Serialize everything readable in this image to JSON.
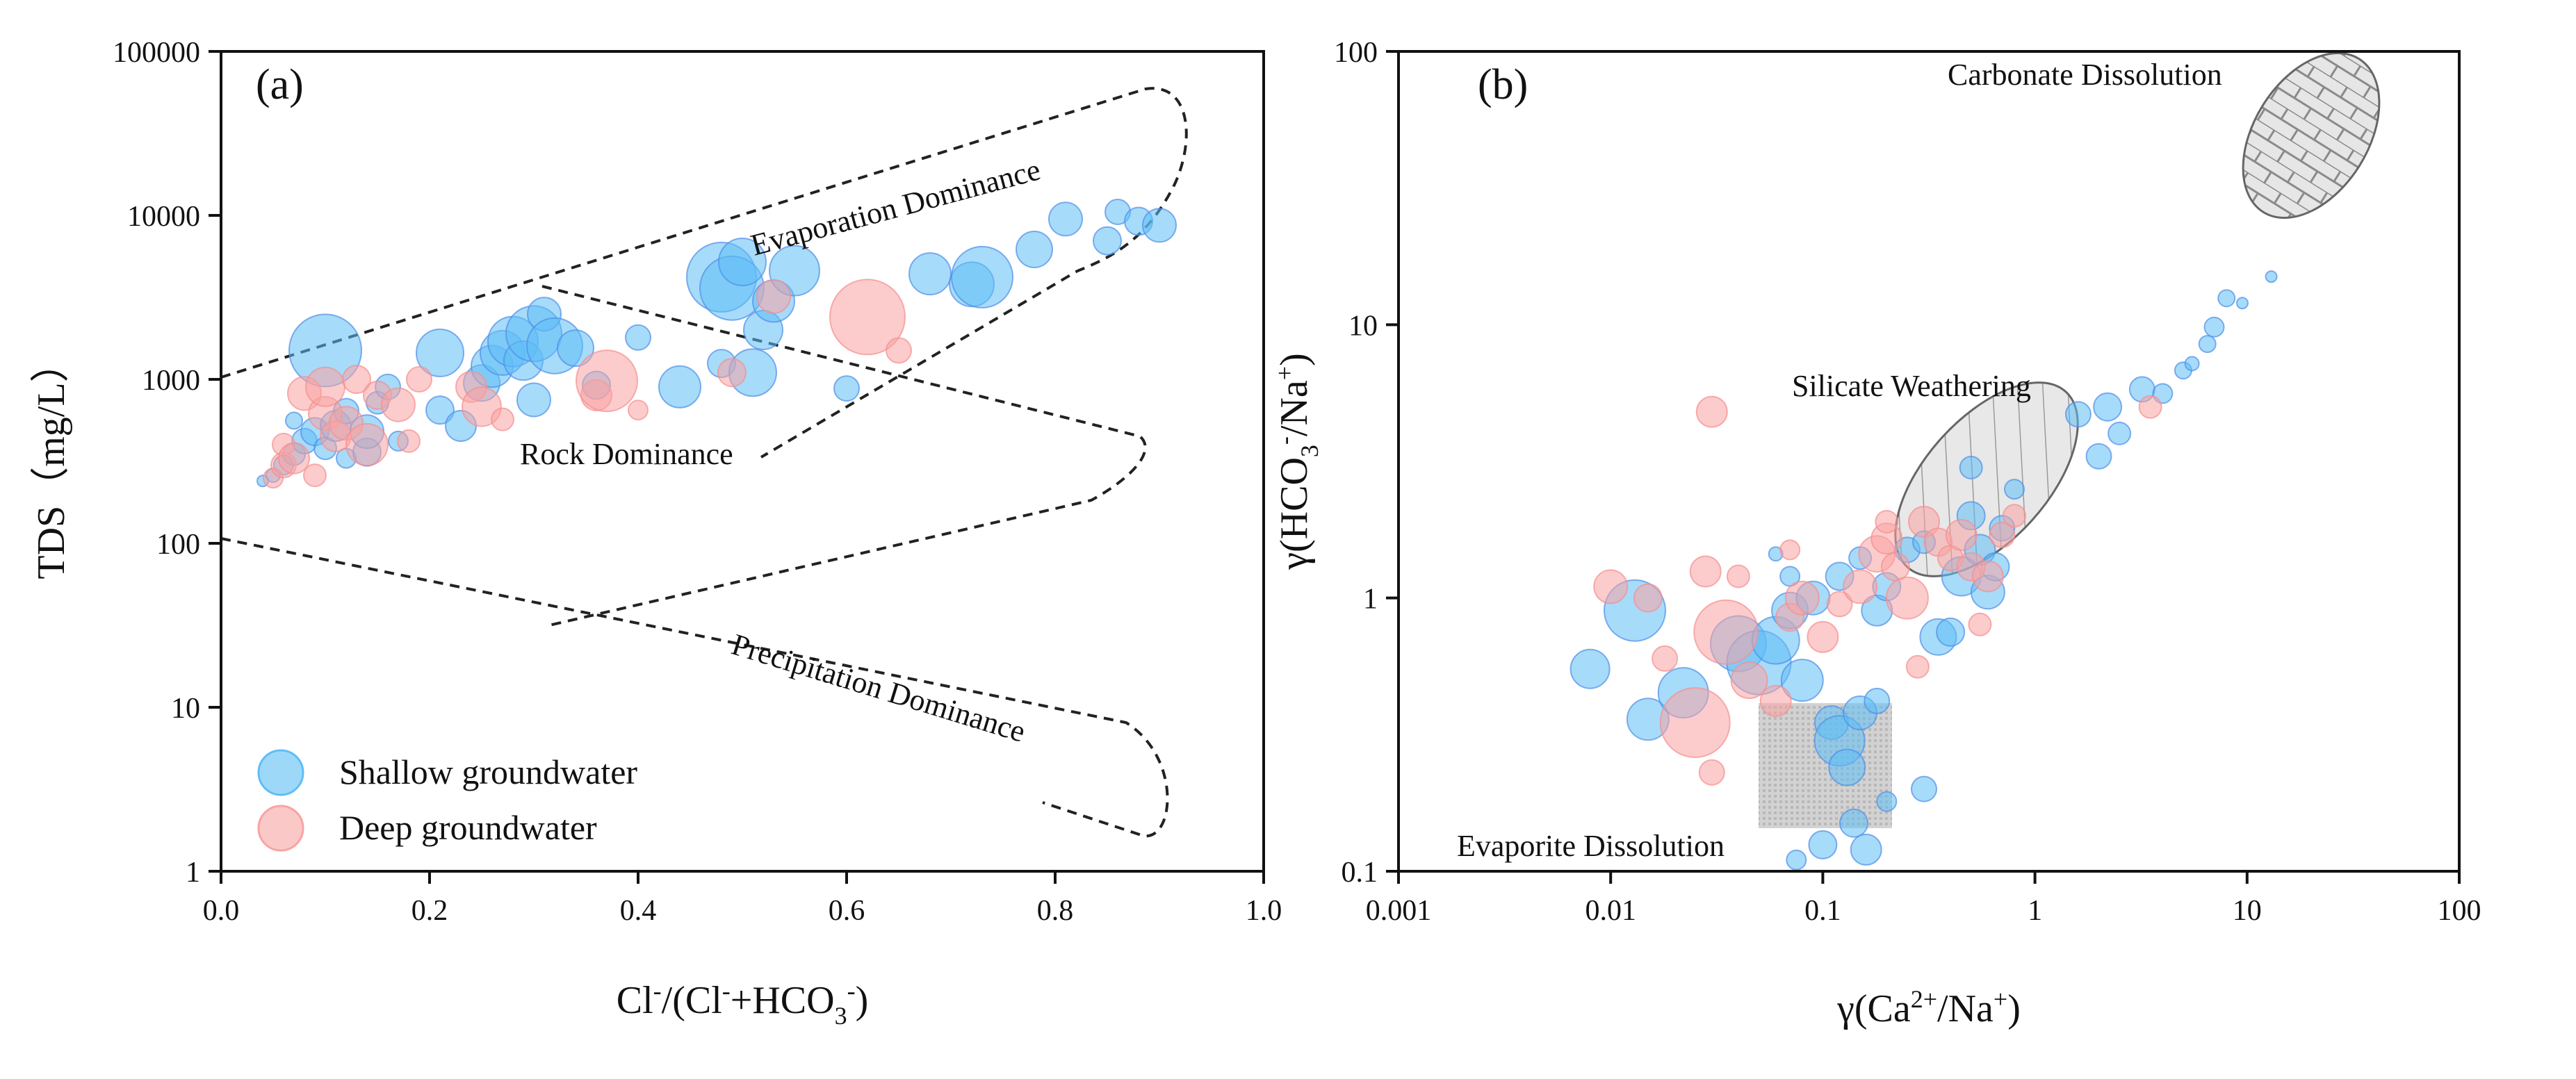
{
  "chart_data": [
    {
      "type": "scatter",
      "panel": "(a)",
      "xlabel": "Cl⁻/(Cl⁻+HCO₃⁻)",
      "ylabel": "TDS（mg/L）",
      "x_scale": "linear",
      "y_scale": "log",
      "xlim": [
        0.0,
        1.0
      ],
      "ylim": [
        1,
        100000
      ],
      "x_ticks": [
        "0.0",
        "0.2",
        "0.4",
        "0.6",
        "0.8",
        "1.0"
      ],
      "y_ticks": [
        "1",
        "10",
        "100",
        "1000",
        "10000",
        "100000"
      ],
      "regions": [
        "Evaporation Dominance",
        "Rock Dominance",
        "Precipitation Dominance"
      ],
      "legend": {
        "position": "bottom-left",
        "entries": [
          {
            "label": "Shallow groundwater",
            "color": "#5EBEF5"
          },
          {
            "label": "Deep groundwater",
            "color": "#F9A3A3"
          }
        ]
      },
      "series": [
        {
          "name": "Shallow groundwater",
          "color": "#5EBEF5",
          "points": [
            {
              "x": 0.04,
              "y": 240,
              "r": 8
            },
            {
              "x": 0.05,
              "y": 260,
              "r": 10
            },
            {
              "x": 0.06,
              "y": 300,
              "r": 14
            },
            {
              "x": 0.07,
              "y": 350,
              "r": 16
            },
            {
              "x": 0.08,
              "y": 420,
              "r": 18
            },
            {
              "x": 0.09,
              "y": 480,
              "r": 20
            },
            {
              "x": 0.07,
              "y": 560,
              "r": 12
            },
            {
              "x": 0.1,
              "y": 380,
              "r": 16
            },
            {
              "x": 0.11,
              "y": 520,
              "r": 22
            },
            {
              "x": 0.12,
              "y": 330,
              "r": 14
            },
            {
              "x": 0.12,
              "y": 640,
              "r": 18
            },
            {
              "x": 0.14,
              "y": 360,
              "r": 20
            },
            {
              "x": 0.14,
              "y": 480,
              "r": 24
            },
            {
              "x": 0.15,
              "y": 720,
              "r": 16
            },
            {
              "x": 0.16,
              "y": 900,
              "r": 18
            },
            {
              "x": 0.17,
              "y": 420,
              "r": 14
            },
            {
              "x": 0.1,
              "y": 1500,
              "r": 52
            },
            {
              "x": 0.21,
              "y": 1450,
              "r": 34
            },
            {
              "x": 0.21,
              "y": 650,
              "r": 20
            },
            {
              "x": 0.23,
              "y": 520,
              "r": 22
            },
            {
              "x": 0.25,
              "y": 950,
              "r": 26
            },
            {
              "x": 0.26,
              "y": 1200,
              "r": 30
            },
            {
              "x": 0.27,
              "y": 1450,
              "r": 32
            },
            {
              "x": 0.28,
              "y": 1700,
              "r": 36
            },
            {
              "x": 0.29,
              "y": 1300,
              "r": 28
            },
            {
              "x": 0.3,
              "y": 1900,
              "r": 40
            },
            {
              "x": 0.31,
              "y": 2500,
              "r": 24
            },
            {
              "x": 0.32,
              "y": 1600,
              "r": 40
            },
            {
              "x": 0.34,
              "y": 1550,
              "r": 26
            },
            {
              "x": 0.3,
              "y": 750,
              "r": 24
            },
            {
              "x": 0.36,
              "y": 920,
              "r": 20
            },
            {
              "x": 0.4,
              "y": 1800,
              "r": 18
            },
            {
              "x": 0.44,
              "y": 900,
              "r": 30
            },
            {
              "x": 0.48,
              "y": 1250,
              "r": 20
            },
            {
              "x": 0.48,
              "y": 4200,
              "r": 50
            },
            {
              "x": 0.49,
              "y": 3600,
              "r": 46
            },
            {
              "x": 0.5,
              "y": 5200,
              "r": 34
            },
            {
              "x": 0.51,
              "y": 1100,
              "r": 34
            },
            {
              "x": 0.52,
              "y": 2000,
              "r": 28
            },
            {
              "x": 0.53,
              "y": 3000,
              "r": 30
            },
            {
              "x": 0.55,
              "y": 4600,
              "r": 36
            },
            {
              "x": 0.6,
              "y": 880,
              "r": 18
            },
            {
              "x": 0.68,
              "y": 4400,
              "r": 30
            },
            {
              "x": 0.72,
              "y": 3800,
              "r": 32
            },
            {
              "x": 0.73,
              "y": 4200,
              "r": 44
            },
            {
              "x": 0.78,
              "y": 6200,
              "r": 26
            },
            {
              "x": 0.81,
              "y": 9500,
              "r": 24
            },
            {
              "x": 0.85,
              "y": 7000,
              "r": 20
            },
            {
              "x": 0.86,
              "y": 10500,
              "r": 18
            },
            {
              "x": 0.88,
              "y": 9200,
              "r": 20
            },
            {
              "x": 0.9,
              "y": 8700,
              "r": 24
            }
          ]
        },
        {
          "name": "Deep groundwater",
          "color": "#F9A3A3",
          "points": [
            {
              "x": 0.05,
              "y": 250,
              "r": 14
            },
            {
              "x": 0.06,
              "y": 300,
              "r": 18
            },
            {
              "x": 0.06,
              "y": 400,
              "r": 16
            },
            {
              "x": 0.07,
              "y": 330,
              "r": 22
            },
            {
              "x": 0.08,
              "y": 820,
              "r": 24
            },
            {
              "x": 0.09,
              "y": 260,
              "r": 16
            },
            {
              "x": 0.1,
              "y": 620,
              "r": 24
            },
            {
              "x": 0.1,
              "y": 900,
              "r": 28
            },
            {
              "x": 0.11,
              "y": 450,
              "r": 22
            },
            {
              "x": 0.12,
              "y": 540,
              "r": 24
            },
            {
              "x": 0.13,
              "y": 1000,
              "r": 20
            },
            {
              "x": 0.14,
              "y": 400,
              "r": 30
            },
            {
              "x": 0.15,
              "y": 800,
              "r": 20
            },
            {
              "x": 0.17,
              "y": 700,
              "r": 24
            },
            {
              "x": 0.18,
              "y": 420,
              "r": 16
            },
            {
              "x": 0.19,
              "y": 1000,
              "r": 18
            },
            {
              "x": 0.24,
              "y": 900,
              "r": 22
            },
            {
              "x": 0.25,
              "y": 680,
              "r": 28
            },
            {
              "x": 0.27,
              "y": 570,
              "r": 16
            },
            {
              "x": 0.36,
              "y": 800,
              "r": 22
            },
            {
              "x": 0.37,
              "y": 980,
              "r": 44
            },
            {
              "x": 0.4,
              "y": 650,
              "r": 14
            },
            {
              "x": 0.49,
              "y": 1100,
              "r": 20
            },
            {
              "x": 0.53,
              "y": 3200,
              "r": 24
            },
            {
              "x": 0.62,
              "y": 2400,
              "r": 54
            },
            {
              "x": 0.65,
              "y": 1500,
              "r": 18
            }
          ]
        }
      ]
    },
    {
      "type": "scatter",
      "panel": "(b)",
      "xlabel": "γ(Ca²⁺/Na⁺)",
      "ylabel": "γ(HCO₃⁻/Na⁺)",
      "x_scale": "log",
      "y_scale": "log",
      "xlim": [
        0.001,
        100
      ],
      "ylim": [
        0.1,
        100
      ],
      "x_ticks": [
        "0.001",
        "0.01",
        "0.1",
        "1",
        "10",
        "100"
      ],
      "y_ticks": [
        "0.1",
        "1",
        "10",
        "100"
      ],
      "regions": [
        "Carbonate Dissolution",
        "Silicate Weathering",
        "Evaporite Dissolution"
      ],
      "series": [
        {
          "name": "Shallow groundwater",
          "color": "#5EBEF5",
          "points": [
            {
              "x": 0.008,
              "y": 0.55,
              "r": 28
            },
            {
              "x": 0.013,
              "y": 0.9,
              "r": 44
            },
            {
              "x": 0.015,
              "y": 0.36,
              "r": 30
            },
            {
              "x": 0.022,
              "y": 0.45,
              "r": 36
            },
            {
              "x": 0.04,
              "y": 0.68,
              "r": 40
            },
            {
              "x": 0.05,
              "y": 0.58,
              "r": 46
            },
            {
              "x": 0.06,
              "y": 0.7,
              "r": 34
            },
            {
              "x": 0.07,
              "y": 0.9,
              "r": 26
            },
            {
              "x": 0.08,
              "y": 0.5,
              "r": 30
            },
            {
              "x": 0.09,
              "y": 1.0,
              "r": 24
            },
            {
              "x": 0.11,
              "y": 0.35,
              "r": 24
            },
            {
              "x": 0.12,
              "y": 0.3,
              "r": 36
            },
            {
              "x": 0.13,
              "y": 0.24,
              "r": 26
            },
            {
              "x": 0.14,
              "y": 0.15,
              "r": 20
            },
            {
              "x": 0.1,
              "y": 0.125,
              "r": 20
            },
            {
              "x": 0.16,
              "y": 0.12,
              "r": 22
            },
            {
              "x": 0.075,
              "y": 0.11,
              "r": 14
            },
            {
              "x": 0.2,
              "y": 0.18,
              "r": 14
            },
            {
              "x": 0.3,
              "y": 0.2,
              "r": 18
            },
            {
              "x": 0.15,
              "y": 0.38,
              "r": 24
            },
            {
              "x": 0.18,
              "y": 0.42,
              "r": 18
            },
            {
              "x": 0.12,
              "y": 1.2,
              "r": 20
            },
            {
              "x": 0.15,
              "y": 1.4,
              "r": 16
            },
            {
              "x": 0.18,
              "y": 0.9,
              "r": 22
            },
            {
              "x": 0.2,
              "y": 1.1,
              "r": 20
            },
            {
              "x": 0.25,
              "y": 1.5,
              "r": 18
            },
            {
              "x": 0.3,
              "y": 1.6,
              "r": 16
            },
            {
              "x": 0.35,
              "y": 0.72,
              "r": 26
            },
            {
              "x": 0.4,
              "y": 0.75,
              "r": 20
            },
            {
              "x": 0.45,
              "y": 1.2,
              "r": 28
            },
            {
              "x": 0.5,
              "y": 2.0,
              "r": 20
            },
            {
              "x": 0.5,
              "y": 3.0,
              "r": 16
            },
            {
              "x": 0.55,
              "y": 1.5,
              "r": 22
            },
            {
              "x": 0.6,
              "y": 1.05,
              "r": 24
            },
            {
              "x": 0.65,
              "y": 1.3,
              "r": 20
            },
            {
              "x": 0.7,
              "y": 1.8,
              "r": 18
            },
            {
              "x": 0.8,
              "y": 2.5,
              "r": 14
            },
            {
              "x": 1.6,
              "y": 4.7,
              "r": 18
            },
            {
              "x": 2.0,
              "y": 3.3,
              "r": 18
            },
            {
              "x": 2.2,
              "y": 5.0,
              "r": 20
            },
            {
              "x": 2.5,
              "y": 4.0,
              "r": 16
            },
            {
              "x": 3.2,
              "y": 5.8,
              "r": 18
            },
            {
              "x": 4.0,
              "y": 5.6,
              "r": 14
            },
            {
              "x": 5.0,
              "y": 6.8,
              "r": 12
            },
            {
              "x": 5.5,
              "y": 7.2,
              "r": 10
            },
            {
              "x": 6.5,
              "y": 8.5,
              "r": 12
            },
            {
              "x": 7.0,
              "y": 9.8,
              "r": 14
            },
            {
              "x": 8.0,
              "y": 12.5,
              "r": 12
            },
            {
              "x": 9.5,
              "y": 12.0,
              "r": 8
            },
            {
              "x": 13.0,
              "y": 15.0,
              "r": 8
            },
            {
              "x": 0.06,
              "y": 1.45,
              "r": 10
            },
            {
              "x": 0.07,
              "y": 1.2,
              "r": 14
            }
          ]
        },
        {
          "name": "Deep groundwater",
          "color": "#F9A3A3",
          "points": [
            {
              "x": 0.01,
              "y": 1.1,
              "r": 24
            },
            {
              "x": 0.015,
              "y": 1.0,
              "r": 20
            },
            {
              "x": 0.018,
              "y": 0.6,
              "r": 18
            },
            {
              "x": 0.025,
              "y": 0.35,
              "r": 50
            },
            {
              "x": 0.028,
              "y": 1.25,
              "r": 22
            },
            {
              "x": 0.03,
              "y": 4.8,
              "r": 22
            },
            {
              "x": 0.03,
              "y": 0.23,
              "r": 18
            },
            {
              "x": 0.035,
              "y": 0.75,
              "r": 46
            },
            {
              "x": 0.04,
              "y": 1.2,
              "r": 16
            },
            {
              "x": 0.045,
              "y": 0.5,
              "r": 26
            },
            {
              "x": 0.06,
              "y": 0.42,
              "r": 22
            },
            {
              "x": 0.07,
              "y": 0.85,
              "r": 20
            },
            {
              "x": 0.08,
              "y": 1.0,
              "r": 24
            },
            {
              "x": 0.1,
              "y": 0.72,
              "r": 22
            },
            {
              "x": 0.12,
              "y": 0.95,
              "r": 18
            },
            {
              "x": 0.15,
              "y": 1.1,
              "r": 24
            },
            {
              "x": 0.18,
              "y": 1.45,
              "r": 26
            },
            {
              "x": 0.2,
              "y": 1.65,
              "r": 22
            },
            {
              "x": 0.22,
              "y": 1.3,
              "r": 20
            },
            {
              "x": 0.25,
              "y": 1.0,
              "r": 30
            },
            {
              "x": 0.28,
              "y": 0.56,
              "r": 16
            },
            {
              "x": 0.3,
              "y": 1.9,
              "r": 22
            },
            {
              "x": 0.35,
              "y": 1.6,
              "r": 20
            },
            {
              "x": 0.4,
              "y": 1.4,
              "r": 18
            },
            {
              "x": 0.45,
              "y": 1.7,
              "r": 22
            },
            {
              "x": 0.5,
              "y": 1.3,
              "r": 20
            },
            {
              "x": 0.55,
              "y": 0.8,
              "r": 16
            },
            {
              "x": 0.6,
              "y": 1.2,
              "r": 22
            },
            {
              "x": 0.7,
              "y": 1.7,
              "r": 18
            },
            {
              "x": 0.8,
              "y": 2.0,
              "r": 16
            },
            {
              "x": 3.5,
              "y": 5.0,
              "r": 16
            },
            {
              "x": 0.07,
              "y": 1.5,
              "r": 14
            },
            {
              "x": 0.2,
              "y": 1.9,
              "r": 16
            }
          ]
        }
      ]
    }
  ]
}
